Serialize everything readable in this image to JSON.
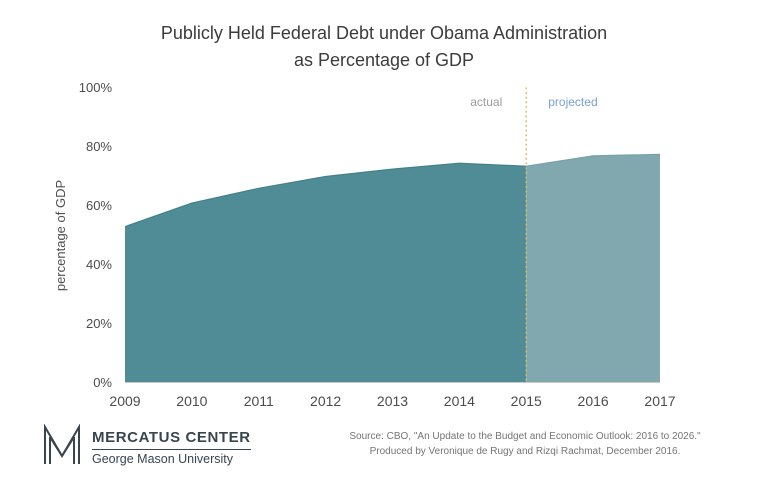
{
  "title": {
    "line1": "Publicly Held Federal Debt under Obama Administration",
    "line2": "as Percentage of GDP"
  },
  "chart_data": {
    "type": "area",
    "x": [
      2009,
      2010,
      2011,
      2012,
      2013,
      2014,
      2015,
      2016,
      2017
    ],
    "values": [
      53,
      61,
      66,
      70,
      72.5,
      74.5,
      73.5,
      77,
      77.5
    ],
    "split_x": 2015,
    "title": "Publicly Held Federal Debt under Obama Administration as Percentage of GDP",
    "xlabel": "",
    "ylabel": "percentage of GDP",
    "ylim": [
      0,
      100
    ],
    "yticks": [
      "0%",
      "20%",
      "40%",
      "60%",
      "80%",
      "100%"
    ],
    "legend_position": "none",
    "grid": false,
    "annotations": {
      "actual": "actual",
      "projected": "projected"
    },
    "colors": {
      "actual_fill": "#4f8c96",
      "projected_fill": "#81a8af",
      "actual_edge": "#44808b",
      "projected_edge": "#74a0a8",
      "divider": "#e3ba4d",
      "actual_label": "#9b9b9b",
      "projected_label": "#7ba0d4",
      "axis_line": "#c9c9c9"
    }
  },
  "footer": {
    "logo_title": "MERCATUS CENTER",
    "logo_subtitle": "George Mason University",
    "source_line1": "Source: CBO, \"An Update to the Budget and Economic Outlook: 2016 to 2026.\"",
    "source_line2": "Produced by Veronique de Rugy and Rizqi Rachmat, December 2016."
  }
}
